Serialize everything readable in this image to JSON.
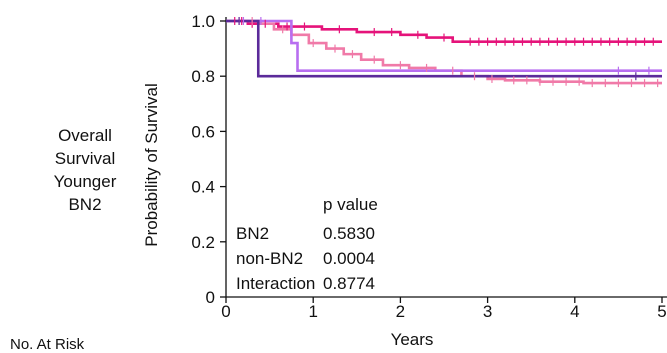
{
  "side_label": [
    "Overall",
    "Survival",
    "Younger",
    "BN2"
  ],
  "risk_label": "No. At Risk",
  "chart_data": {
    "type": "line",
    "xlabel": "Years",
    "ylabel": "Probability of Survival",
    "xlim": [
      0,
      5
    ],
    "ylim": [
      0,
      1.0
    ],
    "xticks": [
      "0",
      "1",
      "2",
      "3",
      "4",
      "5"
    ],
    "yticks": [
      "0",
      "0.2",
      "0.4",
      "0.6",
      "0.8",
      "1.0"
    ],
    "grid": false,
    "censor_marks": true,
    "series": [
      {
        "color": "#e5137a",
        "steps": [
          [
            0,
            1.0
          ],
          [
            0.25,
            0.99
          ],
          [
            0.6,
            0.98
          ],
          [
            1.1,
            0.97
          ],
          [
            1.5,
            0.96
          ],
          [
            2.0,
            0.95
          ],
          [
            2.3,
            0.94
          ],
          [
            2.6,
            0.925
          ],
          [
            5.0,
            0.925
          ]
        ],
        "censors": [
          0.1,
          0.18,
          0.3,
          0.45,
          0.7,
          0.9,
          1.3,
          1.7,
          1.9,
          2.2,
          2.5,
          2.8,
          2.9,
          3.0,
          3.1,
          3.2,
          3.3,
          3.4,
          3.5,
          3.6,
          3.7,
          3.8,
          3.9,
          4.0,
          4.1,
          4.2,
          4.3,
          4.4,
          4.5,
          4.6,
          4.7,
          4.8,
          4.9
        ]
      },
      {
        "color": "#f07aa8",
        "steps": [
          [
            0,
            1.0
          ],
          [
            0.4,
            0.99
          ],
          [
            0.55,
            0.97
          ],
          [
            0.75,
            0.95
          ],
          [
            0.95,
            0.92
          ],
          [
            1.15,
            0.9
          ],
          [
            1.35,
            0.88
          ],
          [
            1.55,
            0.86
          ],
          [
            1.8,
            0.84
          ],
          [
            2.1,
            0.83
          ],
          [
            2.4,
            0.82
          ],
          [
            2.7,
            0.8
          ],
          [
            3.0,
            0.79
          ],
          [
            3.2,
            0.785
          ],
          [
            3.6,
            0.78
          ],
          [
            4.1,
            0.775
          ],
          [
            5.0,
            0.775
          ]
        ],
        "censors": [
          0.15,
          0.3,
          0.65,
          1.0,
          1.25,
          1.45,
          1.7,
          2.0,
          2.3,
          2.6,
          2.85,
          3.05,
          3.3,
          3.45,
          3.6,
          3.75,
          3.9,
          4.05,
          4.2,
          4.35,
          4.5,
          4.65,
          4.8,
          4.95
        ]
      },
      {
        "color": "#b86ef0",
        "steps": [
          [
            0,
            1.0
          ],
          [
            0.75,
            0.92
          ],
          [
            0.82,
            0.82
          ],
          [
            5.0,
            0.82
          ]
        ],
        "censors": [
          0.2,
          0.4,
          4.5,
          4.85
        ]
      },
      {
        "color": "#5b2a9a",
        "steps": [
          [
            0,
            1.0
          ],
          [
            0.37,
            0.8
          ],
          [
            5.0,
            0.8
          ]
        ],
        "censors": [
          0.15,
          4.7
        ]
      }
    ],
    "annotation": {
      "header": "p value",
      "rows": [
        {
          "label": "BN2",
          "value": "0.5830"
        },
        {
          "label": "non-BN2",
          "value": "0.0004"
        },
        {
          "label": "Interaction",
          "value": "0.8774"
        }
      ]
    }
  }
}
